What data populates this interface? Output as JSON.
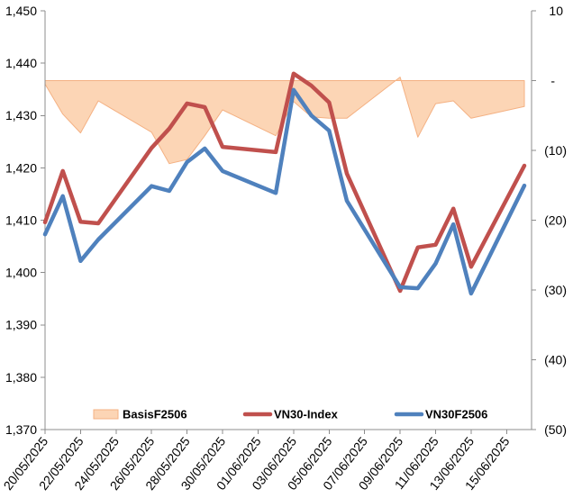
{
  "chart_data": {
    "type": "line",
    "x": [
      "20/05/2025",
      "21/05/2025",
      "22/05/2025",
      "23/05/2025",
      "26/05/2025",
      "27/05/2025",
      "28/05/2025",
      "29/05/2025",
      "30/05/2025",
      "02/06/2025",
      "03/06/2025",
      "04/06/2025",
      "05/06/2025",
      "06/06/2025",
      "09/06/2025",
      "10/06/2025",
      "11/06/2025",
      "12/06/2025",
      "13/06/2025",
      "16/06/2025"
    ],
    "x_axis": {
      "type": "date",
      "lim": [
        "20/05/2025",
        "16/06/2025"
      ],
      "tick_labels": [
        "20/05/2025",
        "22/05/2025",
        "24/05/2025",
        "26/05/2025",
        "28/05/2025",
        "30/05/2025",
        "01/06/2025",
        "03/06/2025",
        "05/06/2025",
        "07/06/2025",
        "09/06/2025",
        "11/06/2025",
        "13/06/2025",
        "15/06/2025"
      ]
    },
    "y_left": {
      "lim": [
        1370,
        1450
      ],
      "tick_labels": [
        "1,450",
        "1,440",
        "1,430",
        "1,420",
        "1,410",
        "1,400",
        "1,390",
        "1,380",
        "1,370"
      ]
    },
    "y_right": {
      "lim": [
        -50,
        10
      ],
      "tick_labels": [
        "10",
        "-",
        "(10)",
        "(20)",
        "(30)",
        "(40)",
        "(50)"
      ]
    },
    "series": [
      {
        "name": "BasisF2506",
        "type": "area",
        "axis": "right",
        "color": "#FCD5B5",
        "edge_color": "#F4B183",
        "values": [
          -0.5,
          -4.8,
          -7.5,
          -2.9,
          -7.4,
          -11.9,
          -11.3,
          -7.9,
          -4.2,
          -7.9,
          -3.0,
          -5.2,
          -5.4,
          -5.4,
          0.5,
          -8.1,
          -3.3,
          -2.9,
          -5.4,
          -3.7
        ]
      },
      {
        "name": "VN30-Index",
        "type": "line",
        "axis": "left",
        "color": "#C0504D",
        "values": [
          1409.6,
          1419.4,
          1409.7,
          1409.4,
          1423.8,
          1427.5,
          1432.3,
          1431.6,
          1424.0,
          1423.0,
          1438.0,
          1435.7,
          1432.5,
          1418.9,
          1396.5,
          1404.8,
          1405.3,
          1412.2,
          1401.1,
          1420.4
        ]
      },
      {
        "name": "VN30F2506",
        "type": "line",
        "axis": "left",
        "color": "#4F81BD",
        "values": [
          1407.3,
          1414.6,
          1402.2,
          1406.3,
          1416.5,
          1415.6,
          1421.1,
          1423.7,
          1419.4,
          1415.2,
          1434.9,
          1430.0,
          1427.1,
          1413.7,
          1397.2,
          1397.0,
          1401.7,
          1409.2,
          1396.0,
          1416.6
        ]
      }
    ],
    "legend": "bottom",
    "grid": false
  }
}
